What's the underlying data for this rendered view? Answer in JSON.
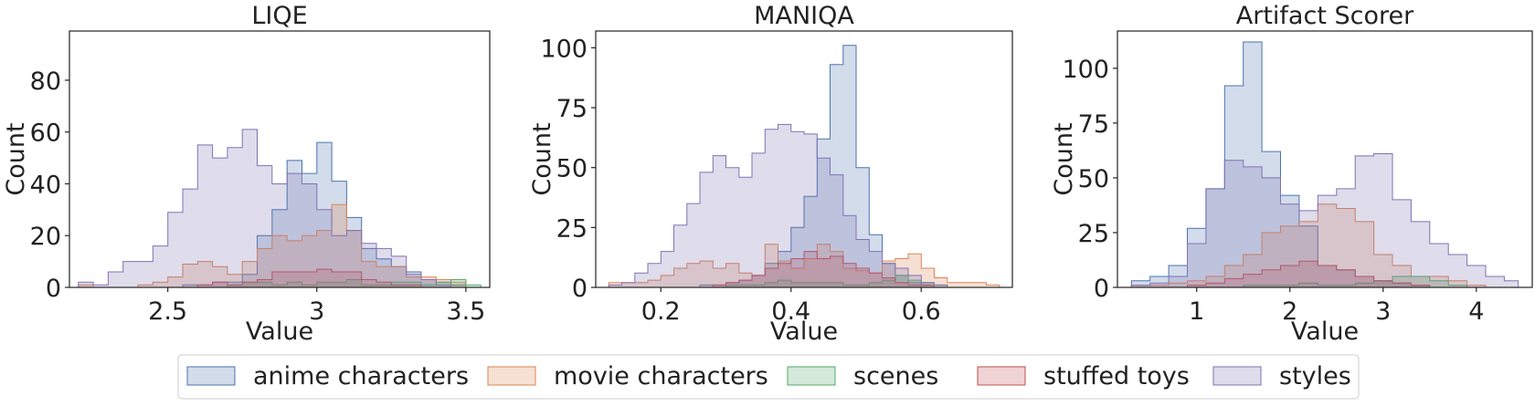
{
  "chart_data": [
    {
      "type": "histogram",
      "title": "LIQE",
      "xlabel": "Value",
      "ylabel": "Count",
      "xlim": [
        2.17,
        3.58
      ],
      "ylim": [
        0,
        99
      ],
      "xticks": [
        2.5,
        3.0,
        3.5
      ],
      "yticks": [
        0,
        20,
        40,
        60,
        80
      ],
      "bins": [
        2.2,
        2.25,
        2.3,
        2.35,
        2.4,
        2.45,
        2.5,
        2.55,
        2.6,
        2.65,
        2.7,
        2.75,
        2.8,
        2.85,
        2.9,
        2.95,
        3.0,
        3.05,
        3.1,
        3.15,
        3.2,
        3.25,
        3.3,
        3.35,
        3.4,
        3.45,
        3.5,
        3.55
      ],
      "series": [
        {
          "name": "anime characters",
          "counts": [
            0,
            0,
            0,
            0,
            0,
            0,
            0,
            1,
            1,
            2,
            2,
            5,
            20,
            30,
            49,
            44,
            56,
            41,
            27,
            15,
            11,
            8,
            6,
            3,
            2,
            1,
            0
          ]
        },
        {
          "name": "movie characters",
          "counts": [
            1,
            0,
            0,
            0,
            1,
            2,
            4,
            9,
            10,
            8,
            5,
            10,
            15,
            20,
            18,
            20,
            22,
            32,
            22,
            10,
            8,
            8,
            4,
            4,
            3,
            2,
            0
          ]
        },
        {
          "name": "scenes",
          "counts": [
            0,
            0,
            0,
            0,
            0,
            0,
            0,
            0,
            0,
            0,
            1,
            2,
            2,
            1,
            2,
            1,
            2,
            2,
            3,
            1,
            1,
            2,
            2,
            1,
            2,
            3,
            1
          ]
        },
        {
          "name": "stuffed toys",
          "counts": [
            0,
            0,
            0,
            0,
            0,
            0,
            0,
            0,
            1,
            2,
            1,
            2,
            3,
            6,
            6,
            6,
            7,
            6,
            6,
            3,
            2,
            1,
            1,
            0,
            0,
            0,
            0
          ]
        },
        {
          "name": "styles",
          "counts": [
            2,
            1,
            6,
            10,
            10,
            16,
            29,
            38,
            55,
            50,
            54,
            61,
            47,
            40,
            44,
            40,
            30,
            20,
            22,
            17,
            15,
            12,
            5,
            3,
            1,
            0,
            0
          ]
        }
      ]
    },
    {
      "type": "histogram",
      "title": "MANIQA",
      "xlabel": "Value",
      "ylabel": "Count",
      "xlim": [
        0.1,
        0.74
      ],
      "ylim": [
        0,
        107
      ],
      "xticks": [
        0.2,
        0.4,
        0.6
      ],
      "yticks": [
        0,
        25,
        50,
        75,
        100
      ],
      "bins": [
        0.12,
        0.14,
        0.16,
        0.18,
        0.2,
        0.22,
        0.24,
        0.26,
        0.28,
        0.3,
        0.32,
        0.34,
        0.36,
        0.38,
        0.4,
        0.42,
        0.44,
        0.46,
        0.48,
        0.5,
        0.52,
        0.54,
        0.56,
        0.58,
        0.6,
        0.62,
        0.64,
        0.66,
        0.68,
        0.7,
        0.72
      ],
      "series": [
        {
          "name": "anime characters",
          "counts": [
            0,
            0,
            0,
            0,
            0,
            0,
            0,
            1,
            1,
            2,
            3,
            5,
            10,
            15,
            25,
            38,
            62,
            93,
            101,
            50,
            22,
            10,
            5,
            2,
            1,
            0,
            0,
            0,
            0,
            0
          ]
        },
        {
          "name": "movie characters",
          "counts": [
            2,
            2,
            2,
            3,
            5,
            8,
            10,
            11,
            8,
            10,
            6,
            5,
            18,
            11,
            8,
            12,
            18,
            15,
            8,
            7,
            6,
            11,
            12,
            14,
            8,
            4,
            2,
            2,
            2,
            1
          ]
        },
        {
          "name": "scenes",
          "counts": [
            0,
            0,
            0,
            0,
            0,
            0,
            0,
            0,
            0,
            1,
            1,
            1,
            2,
            3,
            2,
            2,
            2,
            2,
            1,
            1,
            2,
            3,
            5,
            3,
            2,
            1,
            0,
            0,
            0,
            0
          ]
        },
        {
          "name": "stuffed toys",
          "counts": [
            0,
            0,
            0,
            0,
            0,
            0,
            0,
            0,
            1,
            2,
            3,
            5,
            8,
            10,
            12,
            15,
            12,
            13,
            10,
            8,
            6,
            4,
            2,
            1,
            1,
            0,
            0,
            0,
            0,
            0
          ]
        },
        {
          "name": "styles",
          "counts": [
            1,
            2,
            6,
            10,
            15,
            26,
            35,
            48,
            55,
            50,
            46,
            56,
            66,
            68,
            65,
            64,
            54,
            47,
            30,
            20,
            15,
            10,
            8,
            5,
            2,
            1,
            0,
            0,
            0,
            0
          ]
        }
      ]
    },
    {
      "type": "histogram",
      "title": "Artifact Scorer",
      "xlabel": "Value",
      "ylabel": "Count",
      "xlim": [
        0.15,
        4.6
      ],
      "ylim": [
        0,
        117
      ],
      "xticks": [
        1,
        2,
        3,
        4
      ],
      "yticks": [
        0,
        25,
        50,
        75,
        100
      ],
      "bins": [
        0.3,
        0.5,
        0.7,
        0.9,
        1.1,
        1.3,
        1.5,
        1.7,
        1.9,
        2.1,
        2.3,
        2.5,
        2.7,
        2.9,
        3.1,
        3.3,
        3.5,
        3.7,
        3.9,
        4.1,
        4.3,
        4.45
      ],
      "series": [
        {
          "name": "anime characters",
          "counts": [
            3,
            5,
            10,
            27,
            45,
            92,
            112,
            62,
            42,
            28,
            10,
            8,
            5,
            3,
            2,
            1,
            0,
            0,
            0,
            0,
            0
          ]
        },
        {
          "name": "movie characters",
          "counts": [
            1,
            1,
            2,
            3,
            5,
            10,
            15,
            25,
            28,
            30,
            38,
            36,
            30,
            15,
            10,
            5,
            5,
            3,
            1,
            0,
            0
          ]
        },
        {
          "name": "scenes",
          "counts": [
            0,
            0,
            0,
            0,
            0,
            0,
            1,
            1,
            1,
            2,
            1,
            1,
            2,
            3,
            5,
            5,
            3,
            1,
            0,
            0,
            0
          ]
        },
        {
          "name": "stuffed toys",
          "counts": [
            0,
            0,
            0,
            1,
            2,
            4,
            6,
            8,
            10,
            12,
            10,
            8,
            5,
            3,
            2,
            1,
            0,
            0,
            0,
            0,
            0
          ]
        },
        {
          "name": "styles",
          "counts": [
            1,
            2,
            5,
            20,
            45,
            58,
            55,
            50,
            38,
            35,
            42,
            45,
            60,
            61,
            40,
            30,
            20,
            15,
            10,
            5,
            3
          ]
        }
      ]
    }
  ],
  "legend": {
    "position": "bottom-center",
    "entries": [
      {
        "label": "anime characters",
        "color": "#4c72b0"
      },
      {
        "label": "movie characters",
        "color": "#dd8452"
      },
      {
        "label": "scenes",
        "color": "#55a868"
      },
      {
        "label": "stuffed toys",
        "color": "#c44e52"
      },
      {
        "label": "styles",
        "color": "#8172b3"
      }
    ]
  },
  "colors": {
    "anime characters": "#4c72b0",
    "movie characters": "#dd8452",
    "scenes": "#55a868",
    "stuffed toys": "#c44e52",
    "styles": "#8172b3"
  },
  "fill_opacity": 0.25,
  "grid": false
}
